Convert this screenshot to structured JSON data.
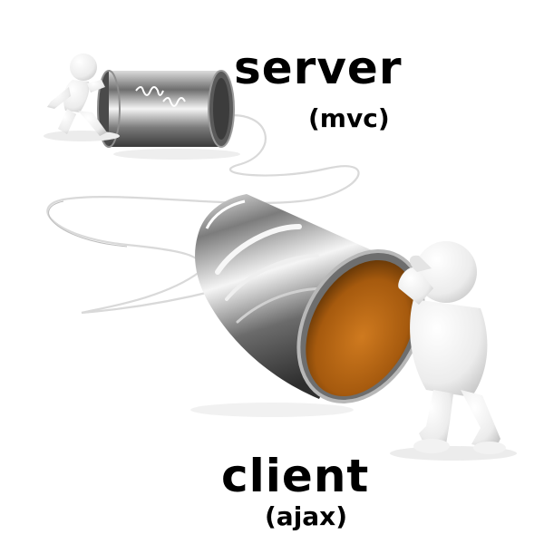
{
  "labels": {
    "server": "server",
    "server_sub": "(mvc)",
    "client": "client",
    "client_sub": "(ajax)"
  },
  "colors": {
    "background": "#ffffff",
    "text": "#000000",
    "can_metal": "#8c8c8c",
    "can_inside": "#b5650f",
    "figure": "#f0f0f0",
    "string": "#e6e6e6"
  },
  "illustration": {
    "subject": "tin-can telephone",
    "elements": [
      "server-figure",
      "server-can",
      "string",
      "client-can",
      "client-figure"
    ]
  }
}
